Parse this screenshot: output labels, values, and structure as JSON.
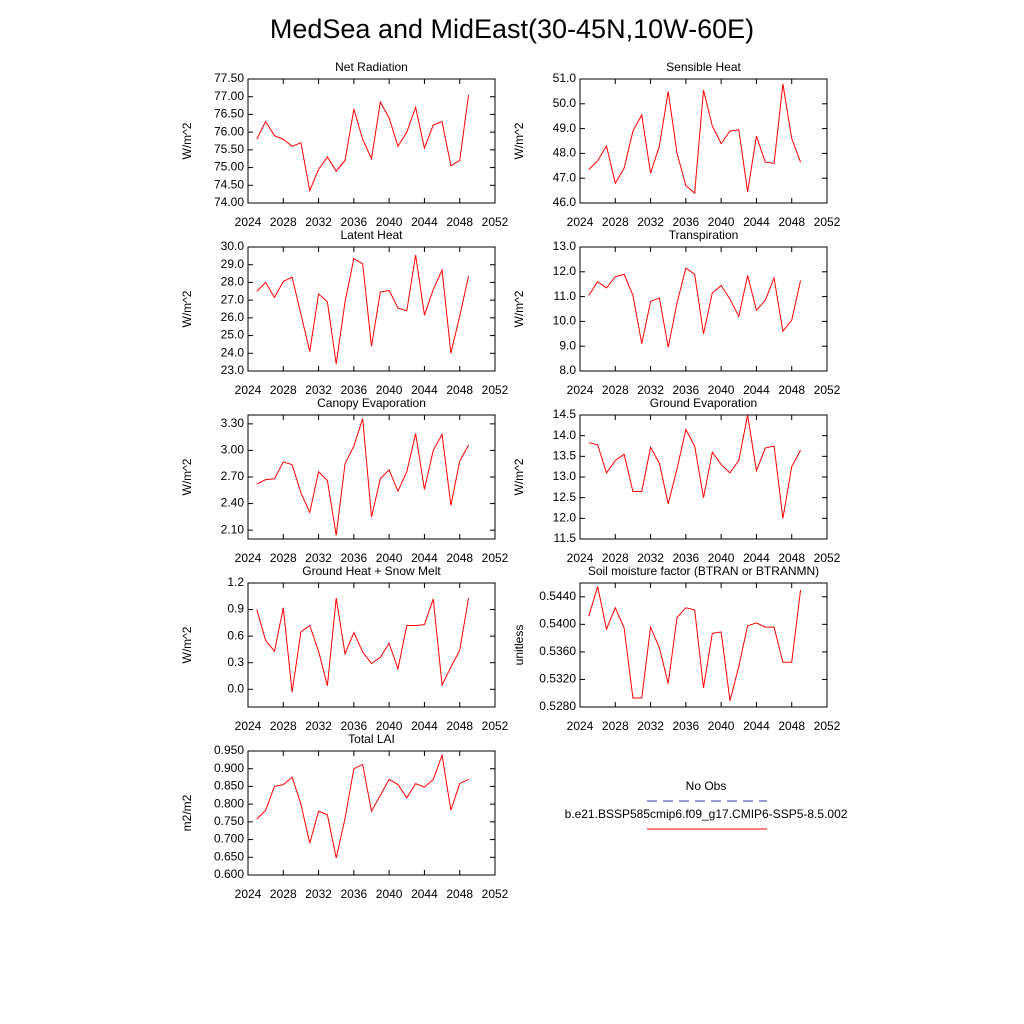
{
  "title": "MedSea and MidEast(30-45N,10W-60E)",
  "legend": [
    {
      "name": "No Obs",
      "color": "#3a3aa8",
      "dashed": true
    },
    {
      "name": "b.e21.BSSP585cmip6.f09_g17.CMIP6-SSP5-8.5.002",
      "color": "#ff0000",
      "dashed": false
    }
  ],
  "chart_data": [
    {
      "type": "line",
      "title": "Net Radiation",
      "y_label": "W/m^2",
      "x": [
        2025,
        2026,
        2027,
        2028,
        2029,
        2030,
        2031,
        2032,
        2033,
        2034,
        2035,
        2036,
        2037,
        2038,
        2039,
        2040,
        2041,
        2042,
        2043,
        2044,
        2045,
        2046,
        2047,
        2048,
        2049
      ],
      "series": [
        {
          "color": "#ff0000",
          "values": [
            75.8,
            76.3,
            75.9,
            75.8,
            75.6,
            75.7,
            74.35,
            74.95,
            75.3,
            74.9,
            75.2,
            76.65,
            75.8,
            75.25,
            76.85,
            76.4,
            75.6,
            76.0,
            76.7,
            75.55,
            76.2,
            76.3,
            75.05,
            75.2,
            77.05
          ]
        }
      ],
      "xlim": [
        2024,
        2052
      ],
      "xticks": [
        2024,
        2028,
        2032,
        2036,
        2040,
        2044,
        2048,
        2052
      ],
      "ylim": [
        74,
        77.5
      ],
      "yticks": [
        {
          "value": 74,
          "label": "74.00"
        },
        {
          "value": 74.5,
          "label": "74.50"
        },
        {
          "value": 75,
          "label": "75.00"
        },
        {
          "value": 75.5,
          "label": "75.50"
        },
        {
          "value": 76,
          "label": "76.00"
        },
        {
          "value": 76.5,
          "label": "76.50"
        },
        {
          "value": 77,
          "label": "77.00"
        },
        {
          "value": 77.5,
          "label": "77.50"
        }
      ]
    },
    {
      "type": "line",
      "title": "Sensible Heat",
      "y_label": "W/m^2",
      "x": [
        2025,
        2026,
        2027,
        2028,
        2029,
        2030,
        2031,
        2032,
        2033,
        2034,
        2035,
        2036,
        2037,
        2038,
        2039,
        2040,
        2041,
        2042,
        2043,
        2044,
        2045,
        2046,
        2047,
        2048,
        2049
      ],
      "series": [
        {
          "color": "#ff0000",
          "values": [
            47.35,
            47.7,
            48.3,
            46.8,
            47.4,
            48.9,
            49.55,
            47.2,
            48.3,
            50.5,
            48.0,
            46.7,
            46.4,
            50.55,
            49.1,
            48.4,
            48.9,
            48.95,
            46.45,
            48.7,
            47.65,
            47.6,
            50.8,
            48.6,
            47.65
          ]
        }
      ],
      "xlim": [
        2024,
        2052
      ],
      "xticks": [
        2024,
        2028,
        2032,
        2036,
        2040,
        2044,
        2048,
        2052
      ],
      "ylim": [
        46,
        51
      ],
      "yticks": [
        {
          "value": 46,
          "label": "46.0"
        },
        {
          "value": 47,
          "label": "47.0"
        },
        {
          "value": 48,
          "label": "48.0"
        },
        {
          "value": 49,
          "label": "49.0"
        },
        {
          "value": 50,
          "label": "50.0"
        },
        {
          "value": 51,
          "label": "51.0"
        }
      ]
    },
    {
      "type": "line",
      "title": "Latent Heat",
      "y_label": "W/m^2",
      "x": [
        2025,
        2026,
        2027,
        2028,
        2029,
        2030,
        2031,
        2032,
        2033,
        2034,
        2035,
        2036,
        2037,
        2038,
        2039,
        2040,
        2041,
        2042,
        2043,
        2044,
        2045,
        2046,
        2047,
        2048,
        2049
      ],
      "series": [
        {
          "color": "#ff0000",
          "values": [
            27.5,
            28.0,
            27.15,
            28.05,
            28.3,
            26.2,
            24.1,
            27.35,
            26.9,
            23.4,
            26.9,
            29.35,
            29.05,
            24.4,
            27.45,
            27.55,
            26.55,
            26.4,
            29.55,
            26.15,
            27.6,
            28.7,
            24.0,
            26.1,
            28.35
          ]
        }
      ],
      "xlim": [
        2024,
        2052
      ],
      "xticks": [
        2024,
        2028,
        2032,
        2036,
        2040,
        2044,
        2048,
        2052
      ],
      "ylim": [
        23,
        30
      ],
      "yticks": [
        {
          "value": 23,
          "label": "23.0"
        },
        {
          "value": 24,
          "label": "24.0"
        },
        {
          "value": 25,
          "label": "25.0"
        },
        {
          "value": 26,
          "label": "26.0"
        },
        {
          "value": 27,
          "label": "27.0"
        },
        {
          "value": 28,
          "label": "28.0"
        },
        {
          "value": 29,
          "label": "29.0"
        },
        {
          "value": 30,
          "label": "30.0"
        }
      ]
    },
    {
      "type": "line",
      "title": "Transpiration",
      "y_label": "W/m^2",
      "x": [
        2025,
        2026,
        2027,
        2028,
        2029,
        2030,
        2031,
        2032,
        2033,
        2034,
        2035,
        2036,
        2037,
        2038,
        2039,
        2040,
        2041,
        2042,
        2043,
        2044,
        2045,
        2046,
        2047,
        2048,
        2049
      ],
      "series": [
        {
          "color": "#ff0000",
          "values": [
            11.05,
            11.6,
            11.35,
            11.8,
            11.9,
            11.05,
            9.1,
            10.8,
            10.95,
            8.95,
            10.75,
            12.15,
            11.9,
            9.5,
            11.15,
            11.45,
            10.9,
            10.2,
            11.85,
            10.45,
            10.85,
            11.75,
            9.6,
            10.05,
            11.65
          ]
        }
      ],
      "xlim": [
        2024,
        2052
      ],
      "xticks": [
        2024,
        2028,
        2032,
        2036,
        2040,
        2044,
        2048,
        2052
      ],
      "ylim": [
        8,
        13
      ],
      "yticks": [
        {
          "value": 8,
          "label": "8.0"
        },
        {
          "value": 9,
          "label": "9.0"
        },
        {
          "value": 10,
          "label": "10.0"
        },
        {
          "value": 11,
          "label": "11.0"
        },
        {
          "value": 12,
          "label": "12.0"
        },
        {
          "value": 13,
          "label": "13.0"
        }
      ]
    },
    {
      "type": "line",
      "title": "Canopy Evaporation",
      "y_label": "W/m^2",
      "x": [
        2025,
        2026,
        2027,
        2028,
        2029,
        2030,
        2031,
        2032,
        2033,
        2034,
        2035,
        2036,
        2037,
        2038,
        2039,
        2040,
        2041,
        2042,
        2043,
        2044,
        2045,
        2046,
        2047,
        2048,
        2049
      ],
      "series": [
        {
          "color": "#ff0000",
          "values": [
            2.62,
            2.67,
            2.68,
            2.87,
            2.84,
            2.52,
            2.3,
            2.76,
            2.66,
            2.04,
            2.85,
            3.05,
            3.36,
            2.25,
            2.68,
            2.78,
            2.54,
            2.76,
            3.19,
            2.56,
            3.0,
            3.18,
            2.38,
            2.88,
            3.06
          ]
        }
      ],
      "xlim": [
        2024,
        2052
      ],
      "xticks": [
        2024,
        2028,
        2032,
        2036,
        2040,
        2044,
        2048,
        2052
      ],
      "ylim": [
        2.0,
        3.4
      ],
      "yticks": [
        {
          "value": 2.1,
          "label": "2.10"
        },
        {
          "value": 2.4,
          "label": "2.40"
        },
        {
          "value": 2.7,
          "label": "2.70"
        },
        {
          "value": 3.0,
          "label": "3.00"
        },
        {
          "value": 3.3,
          "label": "3.30"
        }
      ]
    },
    {
      "type": "line",
      "title": "Ground Evaporation",
      "y_label": "W/m^2",
      "x": [
        2025,
        2026,
        2027,
        2028,
        2029,
        2030,
        2031,
        2032,
        2033,
        2034,
        2035,
        2036,
        2037,
        2038,
        2039,
        2040,
        2041,
        2042,
        2043,
        2044,
        2045,
        2046,
        2047,
        2048,
        2049
      ],
      "series": [
        {
          "color": "#ff0000",
          "values": [
            13.83,
            13.78,
            13.1,
            13.4,
            13.55,
            12.65,
            12.65,
            13.72,
            13.33,
            12.35,
            13.2,
            14.15,
            13.75,
            12.5,
            13.6,
            13.3,
            13.1,
            13.4,
            14.5,
            13.15,
            13.7,
            13.75,
            12.0,
            13.25,
            13.65
          ]
        }
      ],
      "xlim": [
        2024,
        2052
      ],
      "xticks": [
        2024,
        2028,
        2032,
        2036,
        2040,
        2044,
        2048,
        2052
      ],
      "ylim": [
        11.5,
        14.5
      ],
      "yticks": [
        11.5,
        {
          "value": 12,
          "label": "12.0"
        },
        12.5,
        {
          "value": 13,
          "label": "13.0"
        },
        13.5,
        {
          "value": 14,
          "label": "14.0"
        },
        14.5
      ]
    },
    {
      "type": "line",
      "title": "Ground Heat + Snow Melt",
      "y_label": "W/m^2",
      "x": [
        2025,
        2026,
        2027,
        2028,
        2029,
        2030,
        2031,
        2032,
        2033,
        2034,
        2035,
        2036,
        2037,
        2038,
        2039,
        2040,
        2041,
        2042,
        2043,
        2044,
        2045,
        2046,
        2047,
        2048,
        2049
      ],
      "series": [
        {
          "color": "#ff0000",
          "values": [
            0.9,
            0.55,
            0.43,
            0.92,
            -0.03,
            0.65,
            0.72,
            0.43,
            0.04,
            1.03,
            0.4,
            0.64,
            0.42,
            0.29,
            0.36,
            0.52,
            0.23,
            0.72,
            0.72,
            0.73,
            1.02,
            0.05,
            0.25,
            0.44,
            1.03
          ]
        }
      ],
      "xlim": [
        2024,
        2052
      ],
      "xticks": [
        2024,
        2028,
        2032,
        2036,
        2040,
        2044,
        2048,
        2052
      ],
      "ylim": [
        -0.2,
        1.2
      ],
      "yticks": [
        {
          "value": 0,
          "label": "0.0"
        },
        0.3,
        0.6,
        0.9,
        1.2
      ]
    },
    {
      "type": "line",
      "title": "Soil moisture factor (BTRAN or BTRANMN)",
      "y_label": "unitless",
      "x": [
        2025,
        2026,
        2027,
        2028,
        2029,
        2030,
        2031,
        2032,
        2033,
        2034,
        2035,
        2036,
        2037,
        2038,
        2039,
        2040,
        2041,
        2042,
        2043,
        2044,
        2045,
        2046,
        2047,
        2048,
        2049
      ],
      "series": [
        {
          "color": "#ff0000",
          "values": [
            0.5412,
            0.5455,
            0.5393,
            0.5424,
            0.5395,
            0.5293,
            0.5293,
            0.5396,
            0.5366,
            0.5314,
            0.541,
            0.5424,
            0.5421,
            0.5308,
            0.5387,
            0.5389,
            0.5289,
            0.5339,
            0.5398,
            0.5402,
            0.5396,
            0.5396,
            0.5345,
            0.5345,
            0.545
          ]
        }
      ],
      "xlim": [
        2024,
        2052
      ],
      "xticks": [
        2024,
        2028,
        2032,
        2036,
        2040,
        2044,
        2048,
        2052
      ],
      "ylim": [
        0.528,
        0.546
      ],
      "yticks": [
        {
          "value": 0.528,
          "label": "0.5280"
        },
        {
          "value": 0.532,
          "label": "0.5320"
        },
        {
          "value": 0.536,
          "label": "0.5360"
        },
        {
          "value": 0.54,
          "label": "0.5400"
        },
        {
          "value": 0.544,
          "label": "0.5440"
        }
      ]
    },
    {
      "type": "line",
      "title": "Total LAI",
      "y_label": "m2/m2",
      "x": [
        2025,
        2026,
        2027,
        2028,
        2029,
        2030,
        2031,
        2032,
        2033,
        2034,
        2035,
        2036,
        2037,
        2038,
        2039,
        2040,
        2041,
        2042,
        2043,
        2044,
        2045,
        2046,
        2047,
        2048,
        2049
      ],
      "series": [
        {
          "color": "#ff0000",
          "values": [
            0.758,
            0.783,
            0.85,
            0.855,
            0.876,
            0.8,
            0.69,
            0.78,
            0.77,
            0.648,
            0.76,
            0.9,
            0.912,
            0.78,
            0.825,
            0.87,
            0.855,
            0.818,
            0.858,
            0.848,
            0.87,
            0.938,
            0.783,
            0.858,
            0.87
          ]
        }
      ],
      "xlim": [
        2024,
        2052
      ],
      "xticks": [
        2024,
        2028,
        2032,
        2036,
        2040,
        2044,
        2048,
        2052
      ],
      "ylim": [
        0.6,
        0.95
      ],
      "yticks": [
        {
          "value": 0.6,
          "label": "0.600"
        },
        {
          "value": 0.65,
          "label": "0.650"
        },
        {
          "value": 0.7,
          "label": "0.700"
        },
        {
          "value": 0.75,
          "label": "0.750"
        },
        {
          "value": 0.8,
          "label": "0.800"
        },
        {
          "value": 0.85,
          "label": "0.850"
        },
        {
          "value": 0.9,
          "label": "0.900"
        },
        {
          "value": 0.95,
          "label": "0.950"
        }
      ]
    }
  ]
}
